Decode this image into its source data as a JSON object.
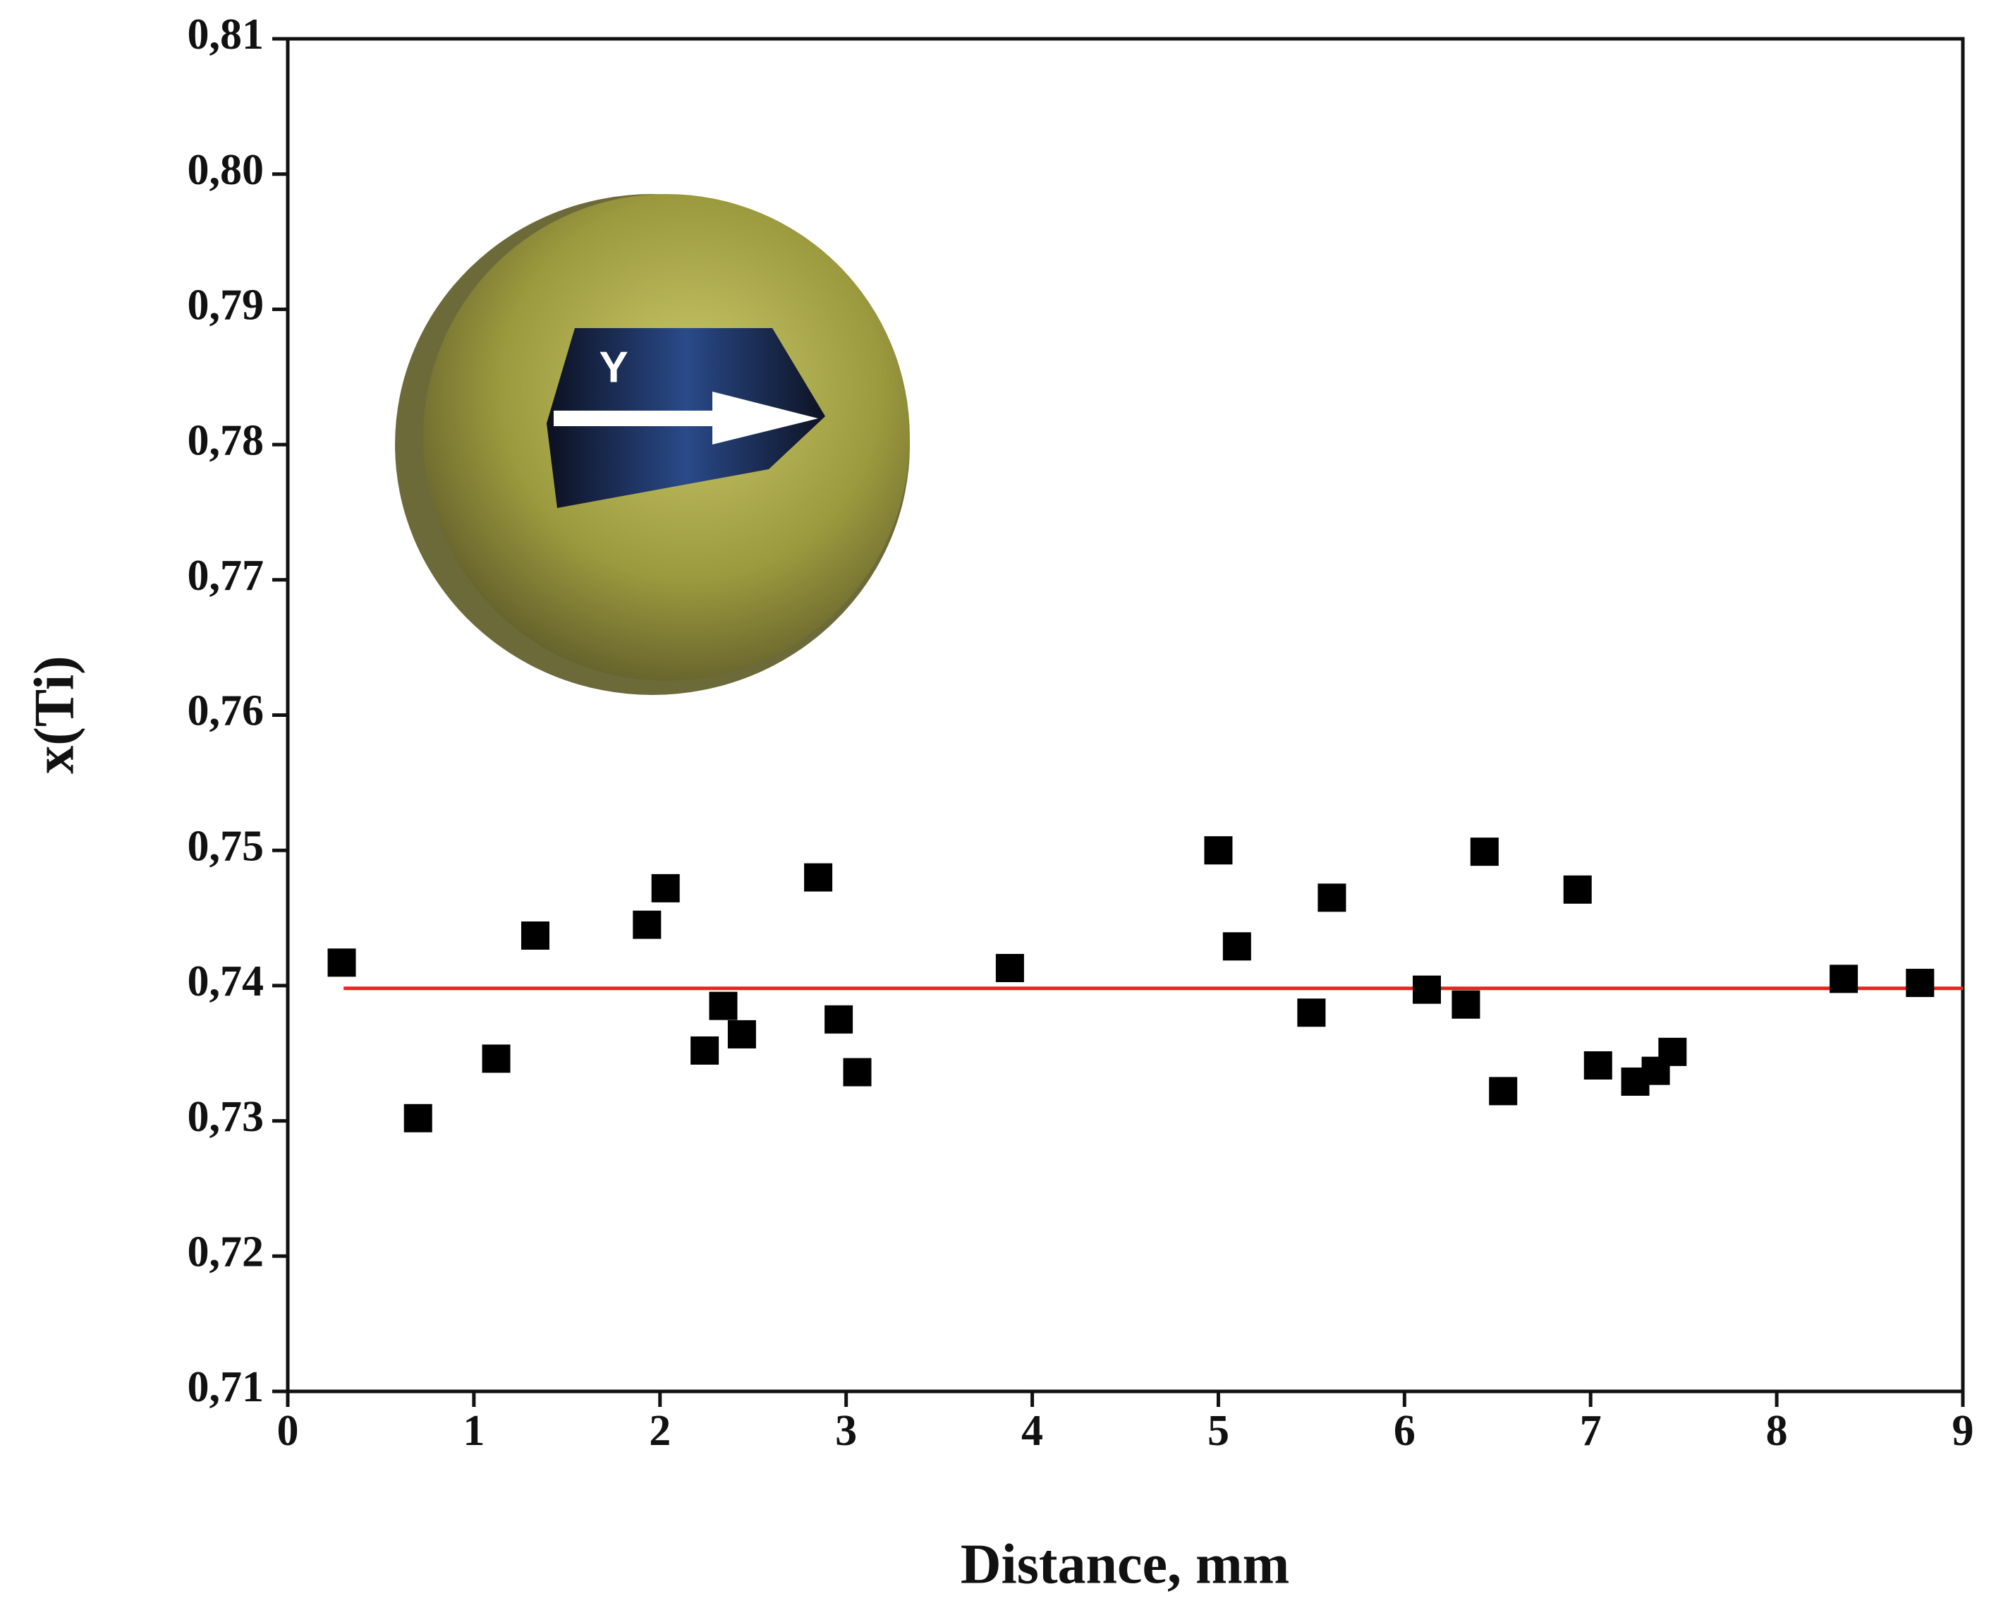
{
  "chart_data": {
    "type": "scatter",
    "xlabel": "Distance, mm",
    "ylabel": "x(Ti)",
    "inset_label": "Y",
    "x": [
      0.29,
      0.7,
      1.12,
      1.33,
      1.93,
      2.03,
      2.24,
      2.34,
      2.44,
      2.85,
      2.96,
      3.06,
      3.88,
      5.0,
      5.1,
      5.5,
      5.61,
      6.12,
      6.33,
      6.43,
      6.53,
      6.93,
      7.04,
      7.24,
      7.35,
      7.44,
      8.36,
      8.77
    ],
    "values": [
      0.7417,
      0.7302,
      0.7346,
      0.7437,
      0.7445,
      0.7472,
      0.7352,
      0.7385,
      0.7364,
      0.748,
      0.7375,
      0.7336,
      0.7413,
      0.75,
      0.7429,
      0.738,
      0.7465,
      0.7397,
      0.7386,
      0.7499,
      0.7322,
      0.7471,
      0.7341,
      0.7329,
      0.7337,
      0.7351,
      0.7405,
      0.7402
    ],
    "color": "#000000",
    "fit_line": {
      "x": [
        0.3,
        9
      ],
      "y": [
        0.7398,
        0.7398
      ],
      "color": "#e8231f"
    },
    "xlim": [
      0,
      9
    ],
    "xticks": [
      0,
      1,
      2,
      3,
      4,
      5,
      6,
      7,
      8,
      9
    ],
    "ylim": [
      0.71,
      0.81
    ],
    "yticks": [
      {
        "value": 0.71,
        "label": "0,71"
      },
      {
        "value": 0.72,
        "label": "0,72"
      },
      {
        "value": 0.73,
        "label": "0,73"
      },
      {
        "value": 0.74,
        "label": "0,74"
      },
      {
        "value": 0.75,
        "label": "0,75"
      },
      {
        "value": 0.76,
        "label": "0,76"
      },
      {
        "value": 0.77,
        "label": "0,77"
      },
      {
        "value": 0.78,
        "label": "0,78"
      },
      {
        "value": 0.79,
        "label": "0,79"
      },
      {
        "value": 0.8,
        "label": "0,80"
      },
      {
        "value": 0.81,
        "label": "0,81"
      }
    ],
    "grid": false
  }
}
